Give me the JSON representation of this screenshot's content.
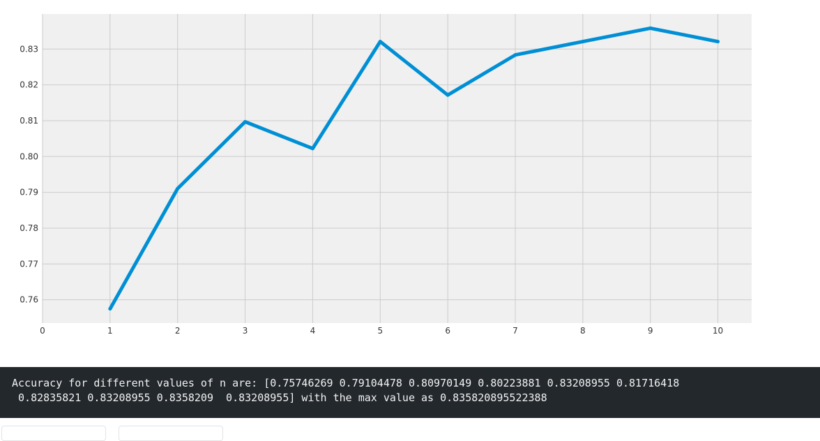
{
  "chart_data": {
    "type": "line",
    "x": [
      1,
      2,
      3,
      4,
      5,
      6,
      7,
      8,
      9,
      10
    ],
    "series": [
      {
        "values": [
          0.75746269,
          0.79104478,
          0.80970149,
          0.80223881,
          0.83208955,
          0.81716418,
          0.82835821,
          0.83208955,
          0.8358209,
          0.83208955
        ],
        "color": "#008fd5"
      }
    ],
    "xticks": [
      "0",
      "1",
      "2",
      "3",
      "4",
      "5",
      "6",
      "7",
      "8",
      "9",
      "10"
    ],
    "yticks": [
      "0.76",
      "0.77",
      "0.78",
      "0.79",
      "0.80",
      "0.81",
      "0.82",
      "0.83"
    ],
    "xlim": [
      0,
      10.5
    ],
    "ylim": [
      0.7535,
      0.8398
    ],
    "grid": true,
    "style": "fivethirtyeight",
    "background_color": "#f0f0f0",
    "grid_color": "#cbcbcb"
  },
  "output": {
    "line1": "Accuracy for different values of n are: [0.75746269 0.79104478 0.80970149 0.80223881 0.83208955 0.81716418",
    "line2": " 0.82835821 0.83208955 0.8358209  0.83208955] with the max value as 0.835820895522388"
  }
}
